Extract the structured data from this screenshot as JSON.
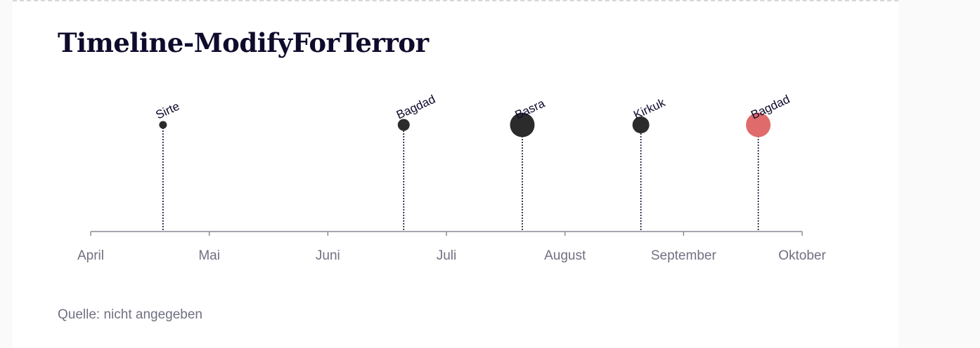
{
  "title": "Timeline-ModifyForTerror",
  "source": "Quelle: nicht angegeben",
  "colors": {
    "title": "#0e0b2c",
    "axis": "#8a8a96",
    "tick_label": "#707083",
    "dot_default": "#2b2b2b",
    "dot_highlight": "#e06b6b",
    "stem": "#0e0b2c"
  },
  "chart_data": {
    "type": "scatter",
    "title": "Timeline-ModifyForTerror",
    "x_axis": {
      "kind": "date",
      "range": [
        "April",
        "Oktober"
      ],
      "ticks": [
        "April",
        "Mai",
        "Juni",
        "Juli",
        "August",
        "September",
        "Oktober"
      ]
    },
    "grid": false,
    "events": [
      {
        "label": "Sirte",
        "month_position": 0.61,
        "size": 1,
        "highlight": false
      },
      {
        "label": "Bagdad",
        "month_position": 2.64,
        "size": 2,
        "highlight": false
      },
      {
        "label": "Basra",
        "month_position": 3.64,
        "size": 4,
        "highlight": false
      },
      {
        "label": "Kirkuk",
        "month_position": 4.64,
        "size": 3,
        "highlight": false
      },
      {
        "label": "Bagdad",
        "month_position": 5.63,
        "size": 4,
        "highlight": true
      }
    ]
  }
}
